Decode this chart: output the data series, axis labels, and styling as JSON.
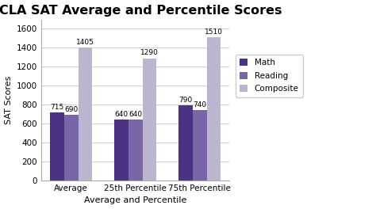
{
  "title": "UCLA SAT Average and Percentile Scores",
  "xlabel": "Average and Percentile",
  "ylabel": "SAT Scores",
  "categories": [
    "Average",
    "25th Percentile",
    "75th Percentile"
  ],
  "series": {
    "Math": [
      715,
      640,
      790
    ],
    "Reading": [
      690,
      640,
      740
    ],
    "Composite": [
      1405,
      1290,
      1510
    ]
  },
  "colors": {
    "Math": "#4b3282",
    "Reading": "#7965a8",
    "Composite": "#bdb5d0"
  },
  "ylim": [
    0,
    1700
  ],
  "yticks": [
    0,
    200,
    400,
    600,
    800,
    1000,
    1200,
    1400,
    1600
  ],
  "bar_width": 0.22,
  "background_color": "#ffffff",
  "plot_bg_color": "#ffffff",
  "title_fontsize": 11.5,
  "label_fontsize": 8,
  "tick_fontsize": 7.5,
  "annotation_fontsize": 6.5,
  "grid_color": "#d0d0d0",
  "legend_fontsize": 7.5
}
